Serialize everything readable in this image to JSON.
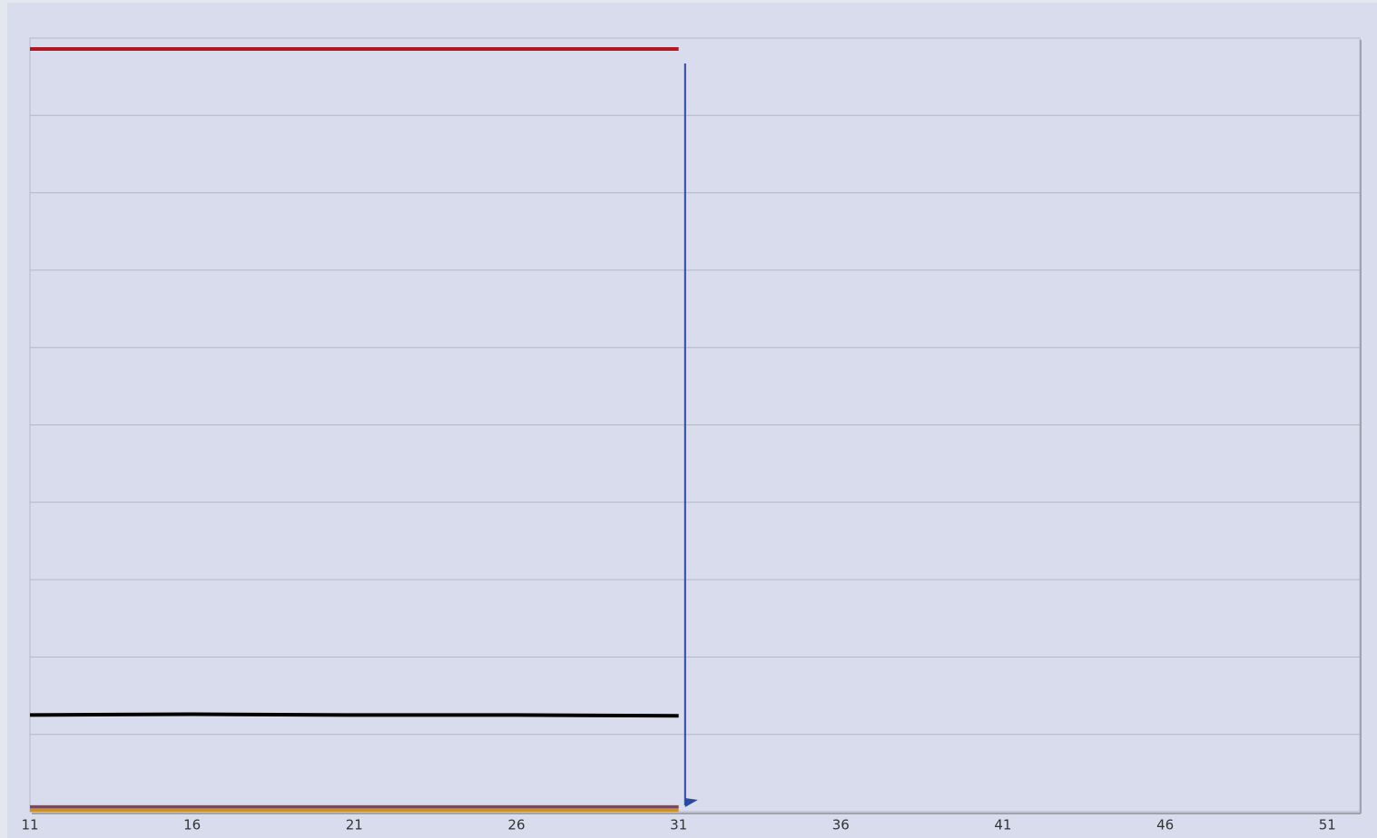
{
  "chart_data": {
    "type": "line",
    "x": [
      11,
      16,
      21,
      26,
      31
    ],
    "series": [
      {
        "color": "#b01822",
        "values": [
          9.86,
          9.86,
          9.86,
          9.86,
          9.86
        ]
      },
      {
        "color": "#000000",
        "values": [
          1.25,
          1.26,
          1.25,
          1.25,
          1.24
        ]
      },
      {
        "color": "#7a4a5a",
        "values": [
          0.06,
          0.06,
          0.06,
          0.06,
          0.06
        ]
      },
      {
        "color": "#c8902a",
        "values": [
          0.02,
          0.02,
          0.02,
          0.02,
          0.02
        ]
      }
    ],
    "xlim": [
      11,
      52
    ],
    "xticks": [
      11,
      16,
      21,
      26,
      31,
      36,
      41,
      46,
      51
    ],
    "ylim": [
      0,
      10
    ],
    "yticks": [
      0,
      1,
      2,
      3,
      4,
      5,
      6,
      7,
      8,
      9,
      10
    ],
    "grid": true,
    "cursor": {
      "x": 31.2,
      "color": "#2a4aa0"
    }
  }
}
